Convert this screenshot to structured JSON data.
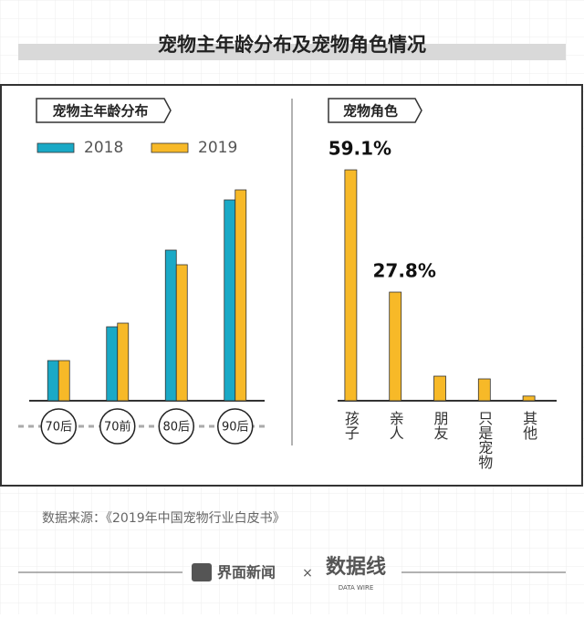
{
  "header": {
    "title": "宠物主年龄分布及宠物角色情况"
  },
  "chart_data": [
    {
      "type": "bar",
      "title": "宠物主年龄分布",
      "categories": [
        "70后",
        "70前",
        "80后",
        "90后"
      ],
      "series": [
        {
          "name": "2018",
          "color": "#1aa9c6",
          "values": [
            44,
            81,
            165,
            220
          ]
        },
        {
          "name": "2019",
          "color": "#f7b928",
          "values": [
            44,
            85,
            149,
            231
          ]
        }
      ]
    },
    {
      "type": "bar",
      "title": "宠物角色",
      "categories": [
        "孩子",
        "亲人",
        "朋友",
        "只是宠物",
        "其他"
      ],
      "values": [
        59.1,
        27.8,
        6.3,
        5.6,
        1.2
      ],
      "value_labels": [
        "59.1%",
        "27.8%",
        null,
        null,
        null
      ],
      "color": "#f7b928"
    }
  ],
  "source": "数据来源：《2019年中国宠物行业白皮书》",
  "footer": {
    "brand": "界面新闻",
    "separator": "×",
    "logo": "数据线",
    "logo_sub": "DATA WIRE"
  }
}
